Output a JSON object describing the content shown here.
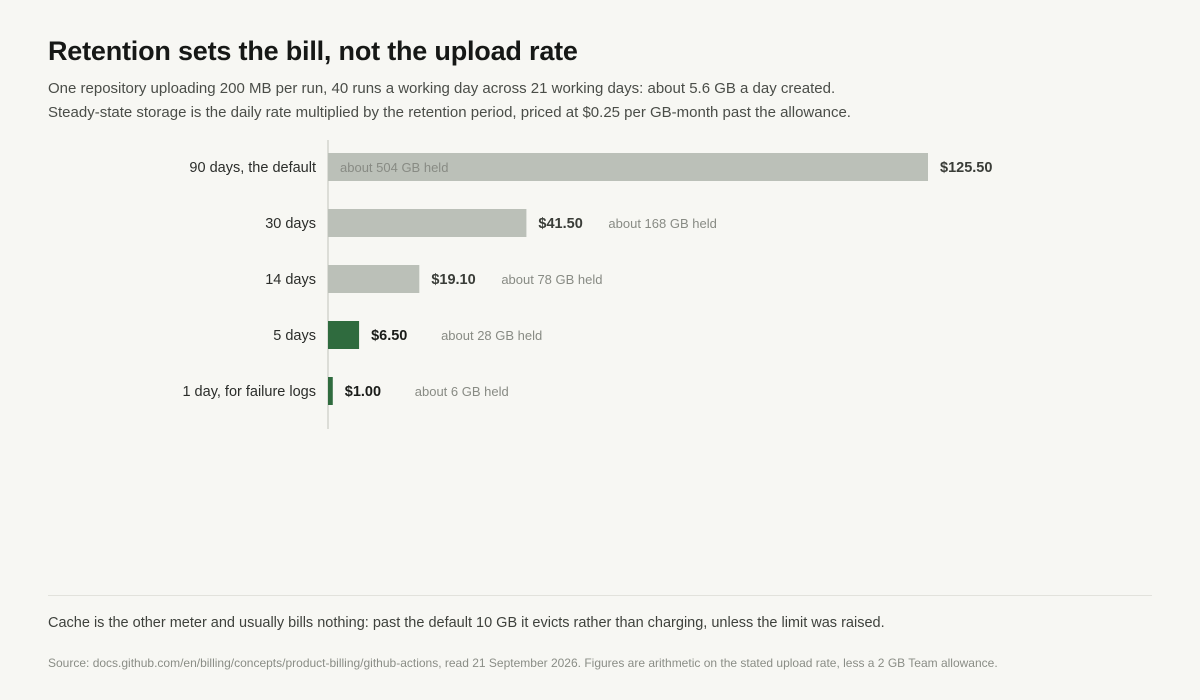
{
  "header": {
    "title": "Retention sets the bill, not the upload rate",
    "subtitle_line1": "One repository uploading 200 MB per run, 40 runs a working day across 21 working days: about 5.6 GB a day created.",
    "subtitle_line2": "Steady-state storage is the daily rate multiplied by the retention period, priced at $0.25 per GB-month past the allowance."
  },
  "chart_data": {
    "type": "bar",
    "orientation": "horizontal",
    "categories": [
      "90 days, the default",
      "30 days",
      "14 days",
      "5 days",
      "1 day, for failure logs"
    ],
    "values": [
      125.5,
      41.5,
      19.1,
      6.5,
      1.0
    ],
    "value_labels": [
      "$125.50",
      "$41.50",
      "$19.10",
      "$6.50",
      "$1.00"
    ],
    "annotations": [
      "about 504 GB held",
      "about 168 GB held",
      "about 78 GB held",
      "about 28 GB held",
      "about 6 GB held"
    ],
    "highlight": [
      false,
      false,
      false,
      true,
      true
    ],
    "colors": {
      "default": "#bbc0b8",
      "highlight": "#2f6b3e",
      "axis": "#dcddd7",
      "label": "#2b2d2a",
      "annotation": "#888b84"
    },
    "xlim": [
      0,
      125.5
    ],
    "grid": false
  },
  "footer": {
    "note": "Cache is the other meter and usually bills nothing: past the default 10 GB it evicts rather than charging, unless the limit was raised.",
    "source": "Source: docs.github.com/en/billing/concepts/product-billing/github-actions, read 21 September 2026. Figures are arithmetic on the stated upload rate, less a 2 GB Team allowance."
  }
}
